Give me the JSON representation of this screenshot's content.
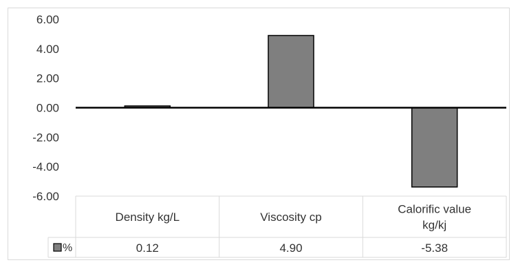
{
  "chart_data": {
    "type": "bar",
    "categories": [
      [
        "Density kg/L"
      ],
      [
        "Viscosity cp"
      ],
      [
        "Calorific value",
        "kg/kj"
      ]
    ],
    "series": [
      {
        "name": "%",
        "values": [
          0.12,
          4.9,
          -5.38
        ],
        "value_labels": [
          "0.12",
          "4.90",
          "-5.38"
        ],
        "color": "#7f7f7f"
      }
    ],
    "yticks": [
      "6.00",
      "4.00",
      "2.00",
      "0.00",
      "-2.00",
      "-4.00",
      "-6.00"
    ],
    "ylim": [
      -6,
      6
    ],
    "grid": false,
    "data_table": true,
    "legend_key_in_table": true
  }
}
